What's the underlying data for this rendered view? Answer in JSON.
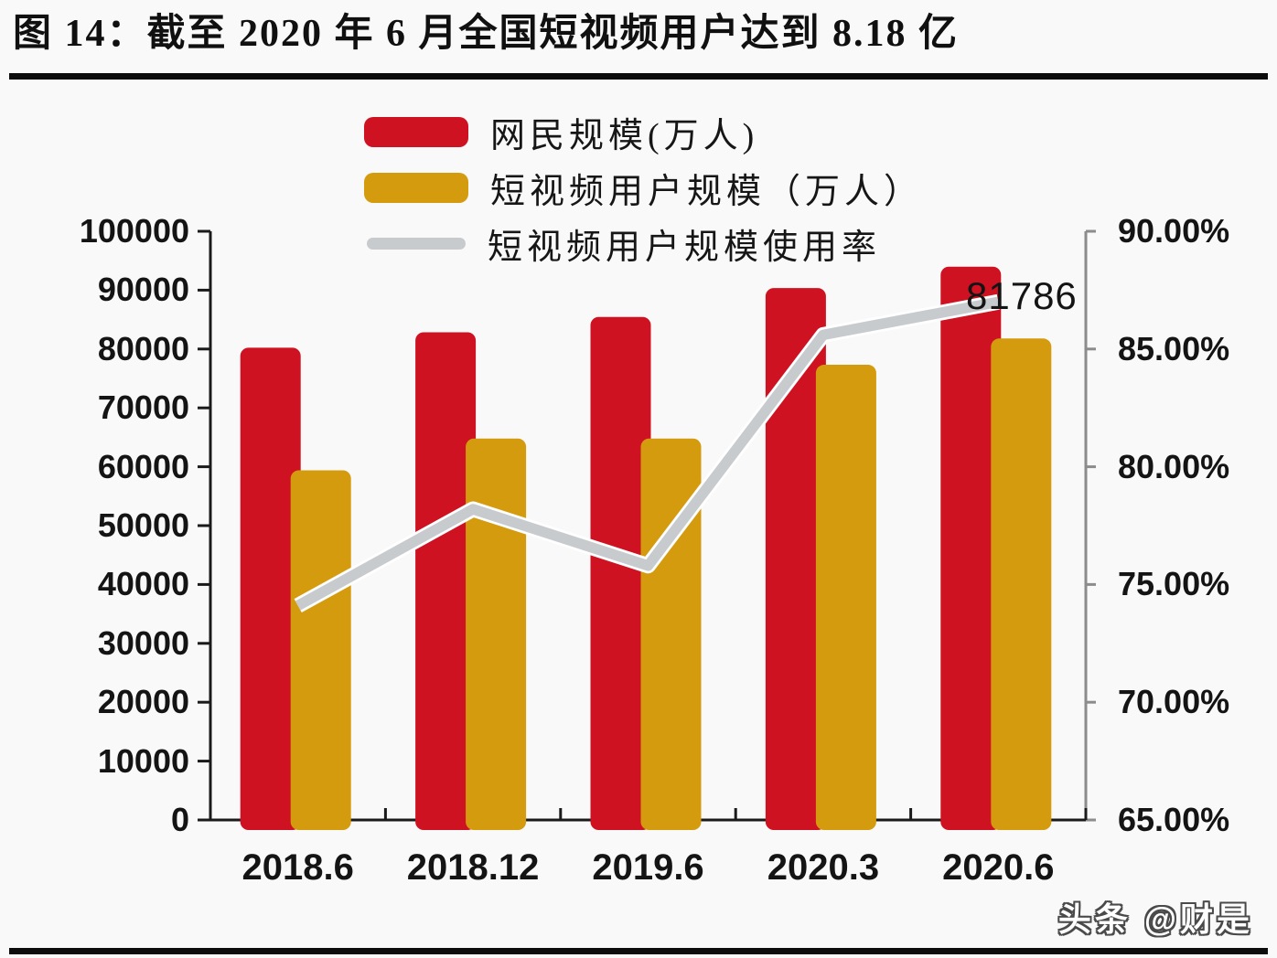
{
  "figure": {
    "title": "图 14：截至 2020 年 6 月全国短视频用户达到 8.18 亿",
    "watermark": "头条 @财是"
  },
  "legend": {
    "items": [
      {
        "label": "网民规模(万人)",
        "marker": "bar",
        "color": "#CE1221"
      },
      {
        "label": "短视频用户规模（万人）",
        "marker": "bar",
        "color": "#D49B0E"
      },
      {
        "label": "短视频用户规模使用率",
        "marker": "line",
        "color": "#C8CBCD"
      }
    ]
  },
  "chart_data": {
    "type": "combo-bar-line",
    "categories": [
      "2018.6",
      "2018.12",
      "2019.6",
      "2020.3",
      "2020.6"
    ],
    "series": [
      {
        "name": "网民规模(万人)",
        "type": "bar",
        "axis": "left",
        "color": "#CE1221",
        "values": [
          80226,
          82851,
          85449,
          90359,
          93984
        ]
      },
      {
        "name": "短视频用户规模（万人）",
        "type": "bar",
        "axis": "left",
        "color": "#D49B0E",
        "values": [
          59400,
          64798,
          64800,
          77325,
          81786
        ]
      },
      {
        "name": "短视频用户规模使用率",
        "type": "line",
        "axis": "right",
        "unit": "%",
        "color": "#C8CBCD",
        "values": [
          74.1,
          78.2,
          75.8,
          85.6,
          87.0
        ]
      }
    ],
    "left_axis": {
      "min": 0,
      "max": 100000,
      "step": 10000,
      "ticks": [
        "100000",
        "90000",
        "80000",
        "70000",
        "60000",
        "50000",
        "40000",
        "30000",
        "20000",
        "10000",
        "0"
      ]
    },
    "right_axis": {
      "min": 65,
      "max": 90,
      "step": 5,
      "color": "#8C8C8C",
      "ticks": [
        "90.00%",
        "85.00%",
        "80.00%",
        "75.00%",
        "70.00%",
        "65.00%"
      ]
    },
    "annotation": {
      "text": "81786",
      "series": "短视频用户规模（万人）",
      "category": "2020.6"
    },
    "grid": false,
    "legend_position": "top-center"
  },
  "colors": {
    "background": "#FAF9F9",
    "axis_black": "#1a1a1a",
    "divider": "#0c0c0c",
    "line_halo": "#ffffff"
  }
}
